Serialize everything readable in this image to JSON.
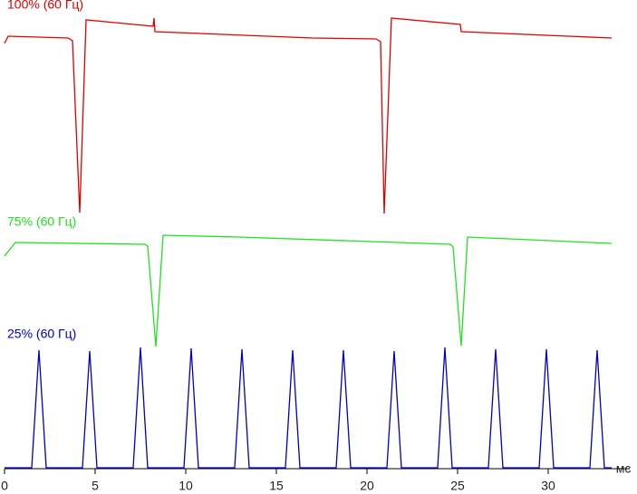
{
  "chart_data": {
    "type": "line",
    "x_label": "мс",
    "xlim": [
      0,
      34.5
    ],
    "xticks": [
      0,
      5,
      10,
      15,
      20,
      25,
      30
    ],
    "ylim": [
      0,
      100
    ],
    "series": [
      {
        "name": "100% (60 Гц)",
        "color": "#e00000",
        "x": [
          0,
          0.2,
          3.5,
          3.75,
          4.15,
          4.5,
          8.2,
          8.25,
          8.3,
          17.0,
          20.5,
          20.75,
          20.95,
          21.35,
          25.15,
          25.2,
          33.5
        ],
        "values": [
          94.0,
          95.6,
          95.2,
          94.6,
          56.6,
          99.2,
          97.8,
          99.6,
          96.6,
          95.2,
          95.0,
          94.4,
          56.4,
          99.6,
          98.2,
          96.6,
          95.2
        ]
      },
      {
        "name": "75% (60 Гц)",
        "color": "#22e022",
        "x": [
          0,
          0.6,
          7.75,
          7.9,
          8.35,
          8.75,
          12.9,
          24.6,
          24.75,
          25.2,
          25.55,
          33.5
        ],
        "values": [
          47.0,
          50.0,
          49.6,
          49.2,
          27.0,
          51.6,
          51.2,
          49.6,
          49.0,
          27.2,
          51.2,
          49.8
        ]
      },
      {
        "name": "25% (60 Гц)",
        "color": "#0000c0",
        "x": [
          0,
          1.5,
          1.9,
          2.3,
          4.3,
          4.7,
          5.1,
          7.1,
          7.5,
          7.9,
          9.9,
          10.3,
          10.7,
          12.7,
          13.1,
          13.5,
          15.5,
          15.9,
          16.3,
          18.3,
          18.7,
          19.1,
          21.1,
          21.5,
          21.9,
          23.9,
          24.3,
          24.7,
          26.7,
          27.1,
          27.5,
          29.5,
          29.9,
          30.3,
          32.3,
          32.7,
          33.1,
          33.5
        ],
        "values": [
          0.2,
          0.2,
          26.2,
          0.2,
          0.2,
          26.0,
          0.2,
          0.2,
          26.8,
          0.2,
          0.2,
          26.6,
          0.2,
          0.2,
          26.4,
          0.2,
          0.2,
          26.2,
          0.2,
          0.2,
          26.2,
          0.2,
          0.2,
          26.0,
          0.2,
          0.2,
          26.8,
          0.2,
          0.2,
          26.4,
          0.2,
          0.2,
          26.4,
          0.2,
          0.2,
          26.2,
          0.2,
          0.2
        ]
      }
    ]
  }
}
